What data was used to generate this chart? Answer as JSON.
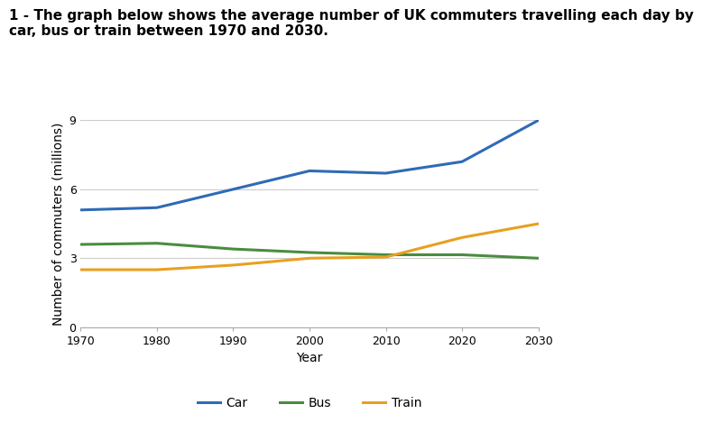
{
  "title_line1": "1 - The graph below shows the average number of UK commuters travelling each day by",
  "title_line2": "car, bus or train between 1970 and 2030.",
  "xlabel": "Year",
  "ylabel": "Number of commuters (millions)",
  "years": [
    1970,
    1980,
    1990,
    2000,
    2010,
    2020,
    2030
  ],
  "car": [
    5.1,
    5.2,
    6.0,
    6.8,
    6.7,
    7.2,
    9.0
  ],
  "bus": [
    3.6,
    3.65,
    3.4,
    3.25,
    3.15,
    3.15,
    3.0
  ],
  "train": [
    2.5,
    2.5,
    2.7,
    3.0,
    3.05,
    3.9,
    4.5
  ],
  "car_color": "#2f6bb5",
  "bus_color": "#4a8c3f",
  "train_color": "#e8a020",
  "ylim": [
    0,
    9
  ],
  "yticks": [
    0,
    3,
    6,
    9
  ],
  "xticks": [
    1970,
    1980,
    1990,
    2000,
    2010,
    2020,
    2030
  ],
  "grid_color": "#cccccc",
  "line_width": 2.2,
  "title_fontsize": 11,
  "axis_label_fontsize": 10,
  "tick_fontsize": 9,
  "legend_fontsize": 10,
  "bg_color": "#ffffff"
}
